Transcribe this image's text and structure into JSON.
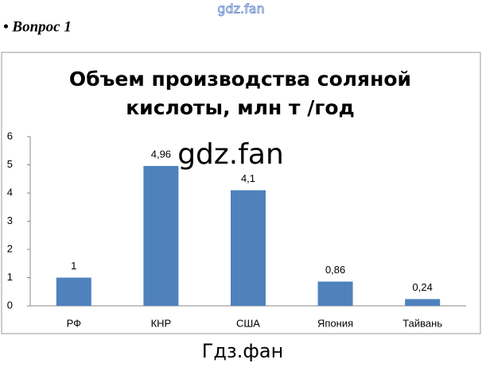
{
  "site_mark": "gdz.fan",
  "question": "• Вопрос 1",
  "watermark": "gdz.fan",
  "footer_mark": "Гдз.фан",
  "chart_data": {
    "type": "bar",
    "title_lines": [
      "Объем производства соляной",
      "кислоты, млн т /год"
    ],
    "categories": [
      "РФ",
      "КНР",
      "США",
      "Япония",
      "Тайвань"
    ],
    "values": [
      1,
      4.96,
      4.1,
      0.86,
      0.24
    ],
    "value_labels": [
      "1",
      "4,96",
      "4,1",
      "0,86",
      "0,24"
    ],
    "color": "#4f81bd",
    "ylim": [
      0,
      6
    ],
    "yticks": [
      0,
      1,
      2,
      3,
      4,
      5,
      6
    ],
    "grid": false
  }
}
